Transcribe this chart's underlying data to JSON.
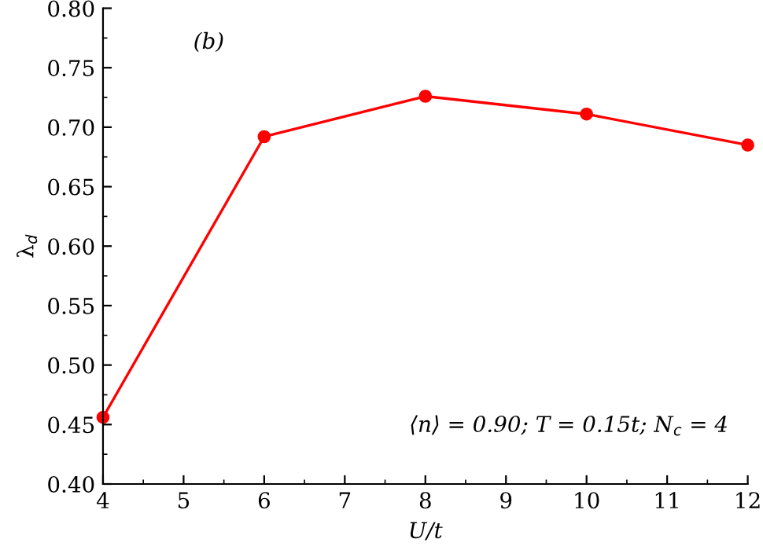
{
  "chart_data": {
    "type": "line",
    "xlabel": "U/t",
    "ylabel": "λ$_{d}$",
    "x": [
      4,
      6,
      8,
      10,
      12
    ],
    "series": [
      {
        "color": "#ff0000",
        "values": [
          0.456,
          0.692,
          0.726,
          0.711,
          0.685
        ]
      }
    ],
    "marker": "circle",
    "line_style": "solid",
    "xlim": [
      4,
      12
    ],
    "xticks": [
      4,
      5,
      6,
      7,
      8,
      9,
      10,
      11,
      12
    ],
    "ylim": [
      0.4,
      0.8
    ],
    "yticks": [
      {
        "value": 0.4,
        "label": "0.40"
      },
      {
        "value": 0.45,
        "label": "0.45"
      },
      {
        "value": 0.5,
        "label": "0.50"
      },
      {
        "value": 0.55,
        "label": "0.55"
      },
      {
        "value": 0.6,
        "label": "0.60"
      },
      {
        "value": 0.65,
        "label": "0.65"
      },
      {
        "value": 0.7,
        "label": "0.70"
      },
      {
        "value": 0.75,
        "label": "0.75"
      },
      {
        "value": 0.8,
        "label": "0.80"
      }
    ],
    "annotations": [
      "(b)",
      "⟨n⟩ = 0.90; T = 0.15t; N$_{c}$ = 4"
    ],
    "grid": false,
    "legend": false
  }
}
